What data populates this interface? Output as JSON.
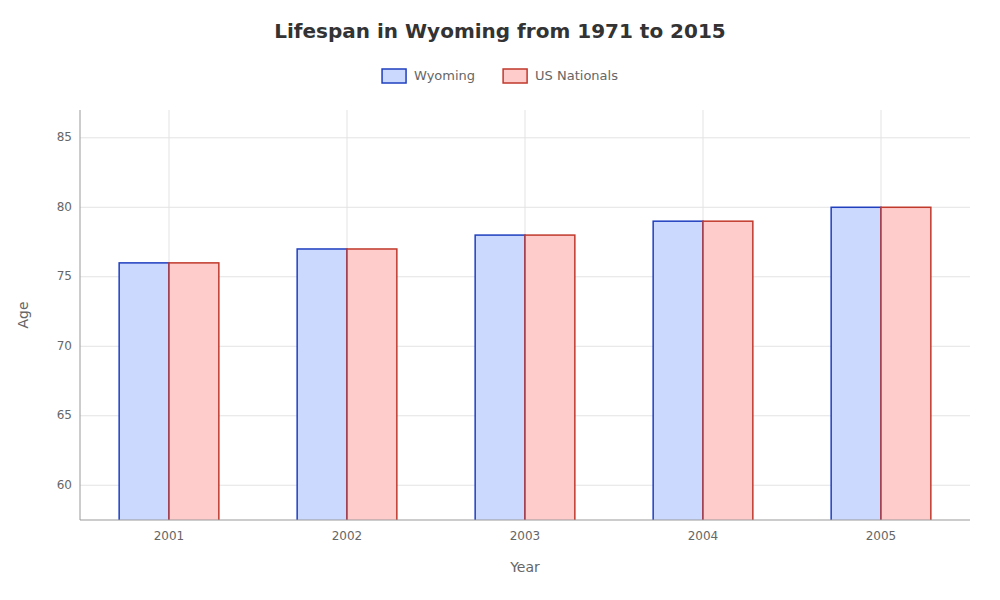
{
  "chart_data": {
    "type": "bar",
    "title": "Lifespan in Wyoming from 1971 to 2015",
    "x_label": "Year",
    "y_label": "Age",
    "categories": [
      "2001",
      "2002",
      "2003",
      "2004",
      "2005"
    ],
    "series": [
      {
        "name": "Wyoming",
        "color": "#ccd9ff",
        "values": [
          76,
          77,
          78,
          79,
          80
        ]
      },
      {
        "name": "US Nationals",
        "color": "#ffcccc",
        "values": [
          76,
          77,
          78,
          79,
          80
        ]
      }
    ],
    "ylim": [
      57.5,
      87
    ],
    "yticks": [
      60,
      65,
      70,
      75,
      80,
      85
    ],
    "grid": true,
    "legend": "top"
  }
}
